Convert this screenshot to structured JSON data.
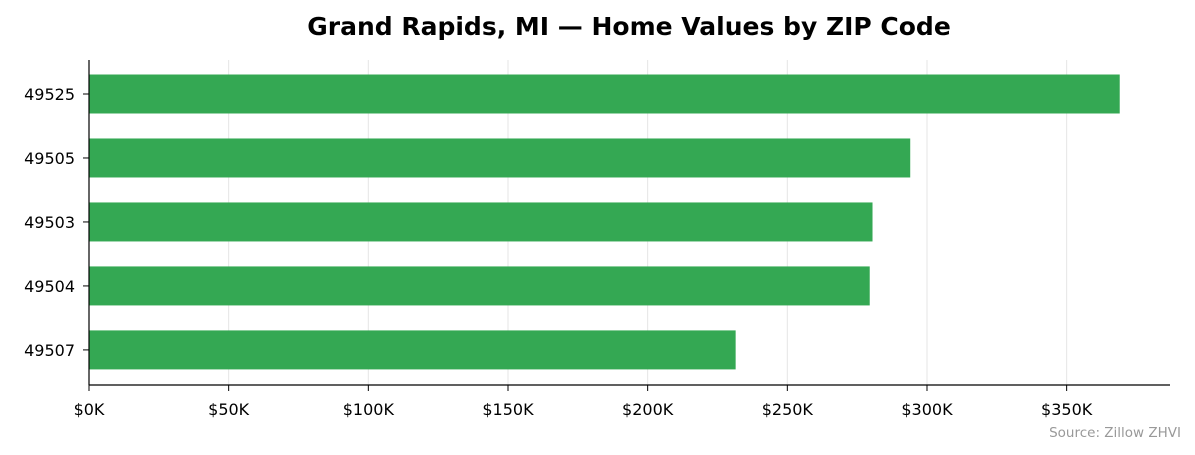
{
  "chart_data": {
    "type": "bar",
    "orientation": "horizontal",
    "title": "Grand Rapids, MI — Home Values by ZIP Code",
    "categories": [
      "49525",
      "49505",
      "49503",
      "49504",
      "49507"
    ],
    "values": [
      369000,
      294000,
      280500,
      279500,
      231500
    ],
    "xlim": [
      0,
      387000
    ],
    "x_ticks": [
      0,
      50000,
      100000,
      150000,
      200000,
      250000,
      300000,
      350000
    ],
    "x_tick_labels": [
      "$0K",
      "$50K",
      "$100K",
      "$150K",
      "$200K",
      "$250K",
      "$300K",
      "$350K"
    ],
    "grid": "vertical",
    "bar_color": "#34a853",
    "grid_color": "#e5e5e5",
    "source": "Source: Zillow ZHVI"
  }
}
